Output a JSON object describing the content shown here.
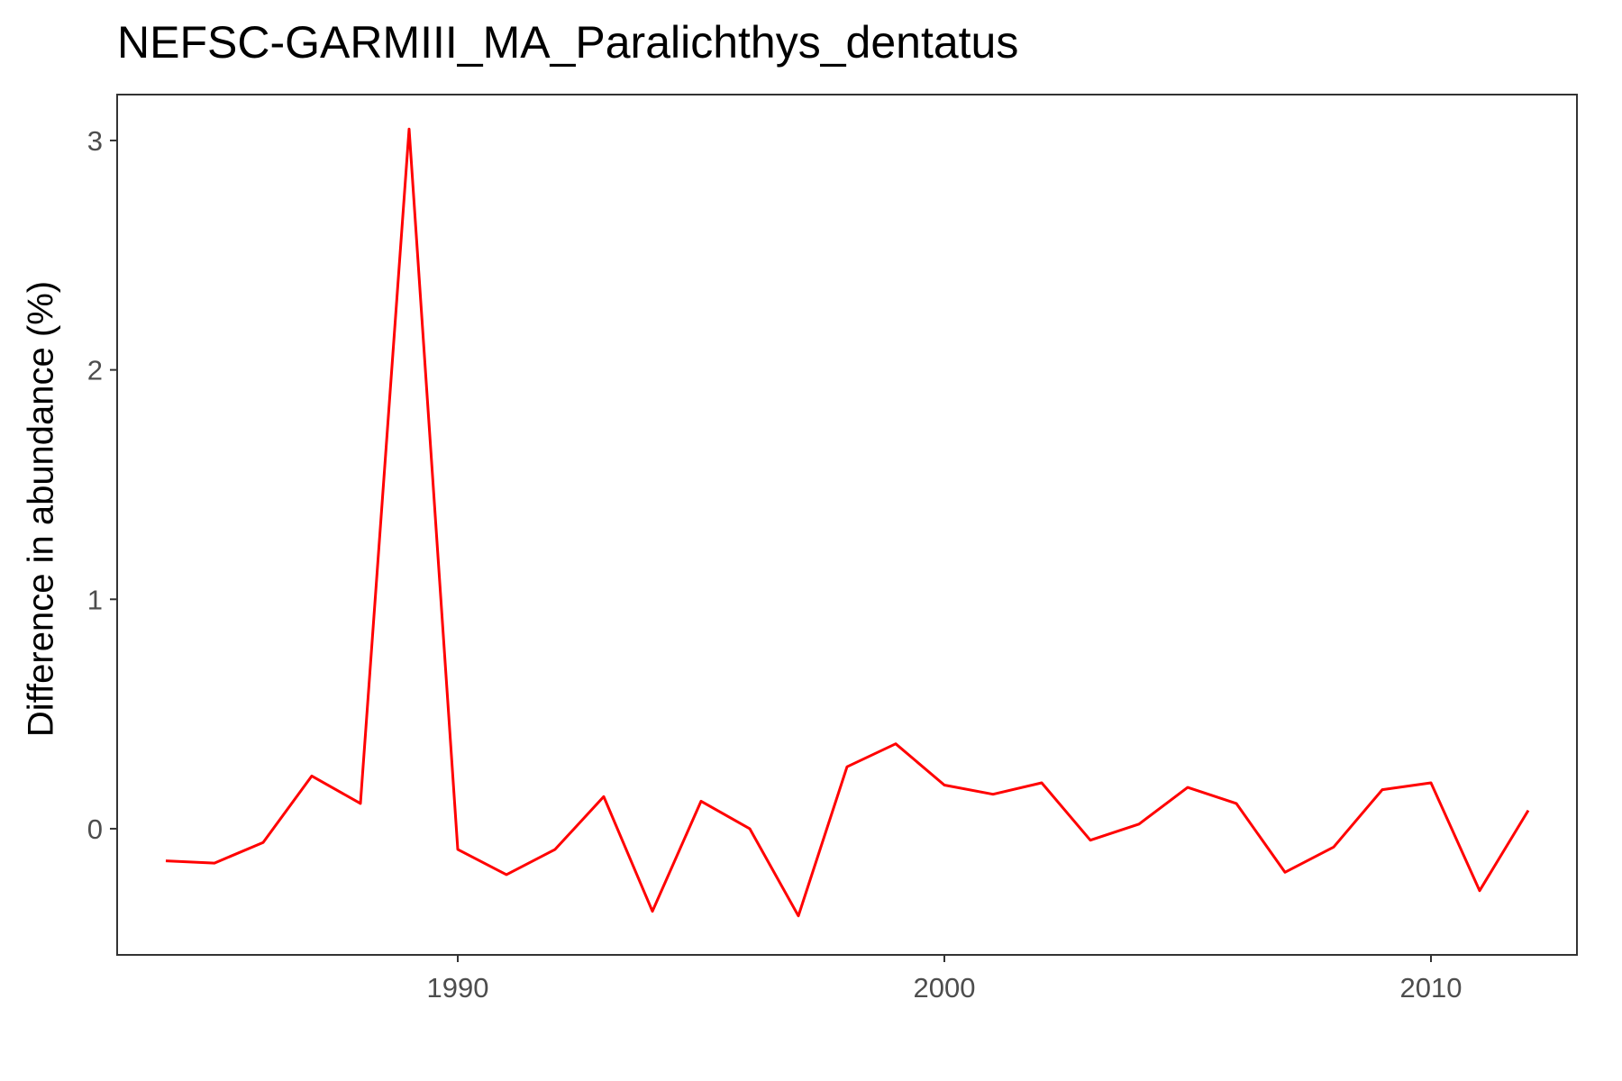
{
  "chart_data": {
    "type": "line",
    "title": "NEFSC-GARMIII_MA_Paralichthys_dentatus",
    "xlabel": "",
    "ylabel": "Difference in abundance (%)",
    "xlim": [
      1983,
      2013
    ],
    "ylim": [
      -0.55,
      3.2
    ],
    "x_ticks": [
      1990,
      2000,
      2010
    ],
    "y_ticks": [
      0,
      1,
      2,
      3
    ],
    "grid": false,
    "legend": "none",
    "colors": {
      "line": "#ff0000",
      "axis": "#333333",
      "tick_text": "#4d4d4d"
    },
    "series": [
      {
        "x": [
          1984,
          1985,
          1986,
          1987,
          1988,
          1989,
          1990,
          1991,
          1992,
          1993,
          1994,
          1995,
          1996,
          1997,
          1998,
          1999,
          2000,
          2001,
          2002,
          2003,
          2004,
          2005,
          2006,
          2007,
          2008,
          2009,
          2010,
          2011,
          2012
        ],
        "values": [
          -0.14,
          -0.15,
          -0.06,
          0.23,
          0.11,
          3.05,
          -0.09,
          -0.2,
          -0.09,
          0.14,
          -0.36,
          0.12,
          0.0,
          -0.38,
          0.27,
          0.37,
          0.19,
          0.15,
          0.2,
          -0.05,
          0.02,
          0.18,
          0.11,
          -0.19,
          -0.08,
          0.17,
          0.2,
          -0.27,
          0.08
        ]
      }
    ]
  }
}
